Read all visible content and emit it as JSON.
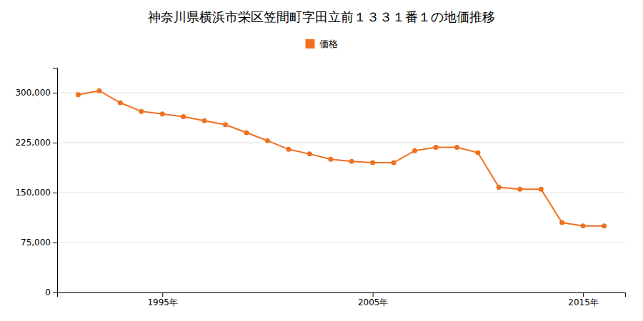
{
  "chart_data": {
    "type": "line",
    "title": "神奈川県横浜市栄区笠間町字田立前１３３１番１の地価推移",
    "x": [
      1991,
      1992,
      1993,
      1994,
      1995,
      1996,
      1997,
      1998,
      1999,
      2000,
      2001,
      2002,
      2003,
      2004,
      2005,
      2006,
      2007,
      2008,
      2009,
      2010,
      2011,
      2012,
      2013,
      2014,
      2015,
      2016
    ],
    "series": [
      {
        "name": "価格",
        "color": "#f07020",
        "marker": "circle",
        "values": [
          297000,
          303000,
          285000,
          272000,
          268000,
          264000,
          258000,
          252000,
          240000,
          228000,
          215000,
          208000,
          200000,
          197000,
          195000,
          195000,
          213000,
          218000,
          218000,
          210000,
          158000,
          155000,
          155000,
          105000,
          100000,
          100000
        ]
      }
    ],
    "xlim": [
      1990.0,
      2017.0
    ],
    "xticks": [
      {
        "value": 1995,
        "label": "1995年"
      },
      {
        "value": 2005,
        "label": "2005年"
      },
      {
        "value": 2015,
        "label": "2015年"
      }
    ],
    "ylim": [
      0,
      337500
    ],
    "yticks": [
      0,
      {
        "value": 75000,
        "label": "75,000"
      },
      {
        "value": 150000,
        "label": "150,000"
      },
      {
        "value": 225000,
        "label": "225,000"
      },
      {
        "value": 300000,
        "label": "300,000"
      }
    ],
    "grid": true,
    "legend": "top"
  }
}
